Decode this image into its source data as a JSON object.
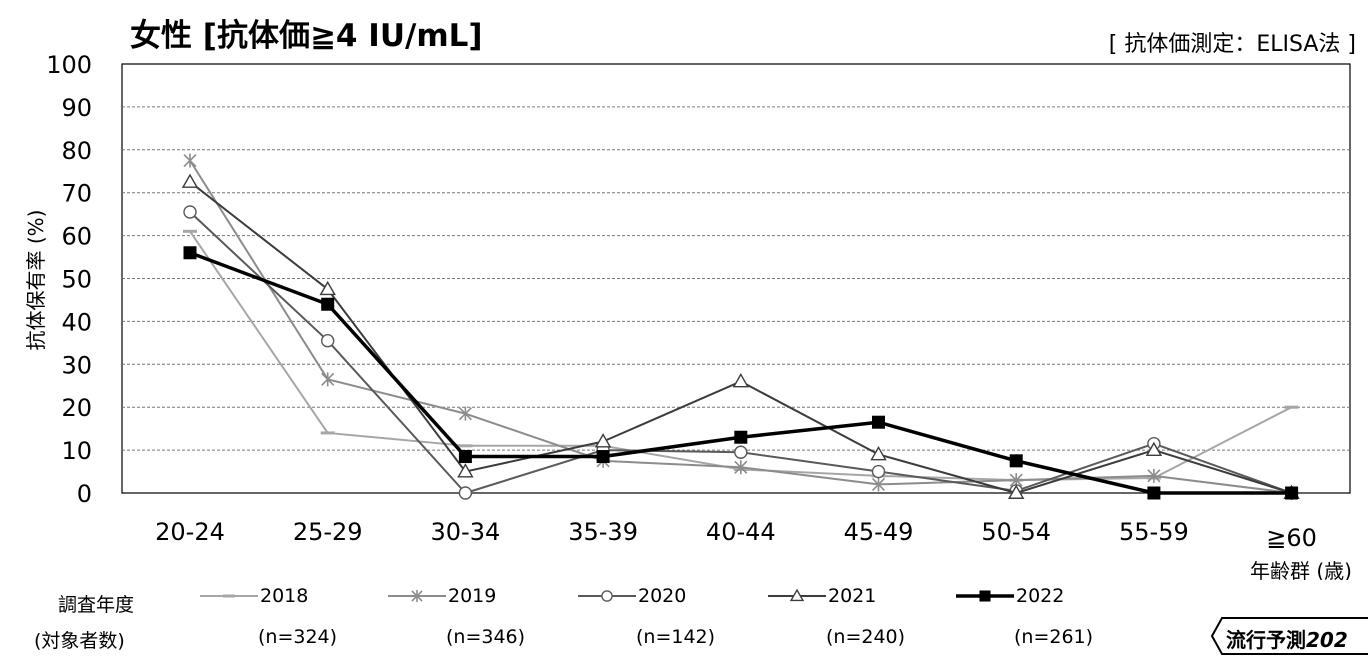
{
  "title": "女性 [抗体価≧4 IU/mL]",
  "method_note": "[ 抗体価測定：ELISA法 ]",
  "legend_heading": "調査年度",
  "legend_subheading": "(対象者数)",
  "badge": {
    "text_main": "流行予測",
    "text_year": "202"
  },
  "chart_data": {
    "type": "line",
    "title": "女性 [抗体価≧4 IU/mL]",
    "categories": [
      "20-24",
      "25-29",
      "30-34",
      "35-39",
      "40-44",
      "45-49",
      "50-54",
      "55-59",
      "≧60"
    ],
    "ylabel": "抗体保有率 (%)",
    "xlabel": "年齢群 (歳)",
    "ylim": [
      0,
      100
    ],
    "yticks": [
      0,
      10,
      20,
      30,
      40,
      50,
      60,
      70,
      80,
      90,
      100
    ],
    "grid": true,
    "legend_placement": "bottom",
    "series": [
      {
        "name": "2018",
        "n": "(n=324)",
        "color": "#a6a6a6",
        "marker": "dash",
        "stroke": 2,
        "values": [
          61,
          14,
          11,
          11,
          5.5,
          4,
          3,
          3.5,
          20
        ]
      },
      {
        "name": "2019",
        "n": "(n=346)",
        "color": "#8c8c8c",
        "marker": "star",
        "stroke": 2,
        "values": [
          77.5,
          26.5,
          18.5,
          7.5,
          6,
          2,
          3,
          4,
          0
        ]
      },
      {
        "name": "2020",
        "n": "(n=142)",
        "color": "#5a5a5a",
        "marker": "circle",
        "stroke": 2,
        "values": [
          65.5,
          35.5,
          0,
          10,
          9.5,
          5,
          0.5,
          11.5,
          0
        ]
      },
      {
        "name": "2021",
        "n": "(n=240)",
        "color": "#3c3c3c",
        "marker": "triangle",
        "stroke": 2,
        "values": [
          72.5,
          47.5,
          5,
          12,
          26,
          9,
          0,
          10,
          0
        ]
      },
      {
        "name": "2022",
        "n": "(n=261)",
        "color": "#000000",
        "marker": "square",
        "stroke": 3.5,
        "values": [
          56,
          44,
          8.5,
          8.5,
          13,
          16.5,
          7.5,
          0,
          0
        ]
      }
    ]
  }
}
